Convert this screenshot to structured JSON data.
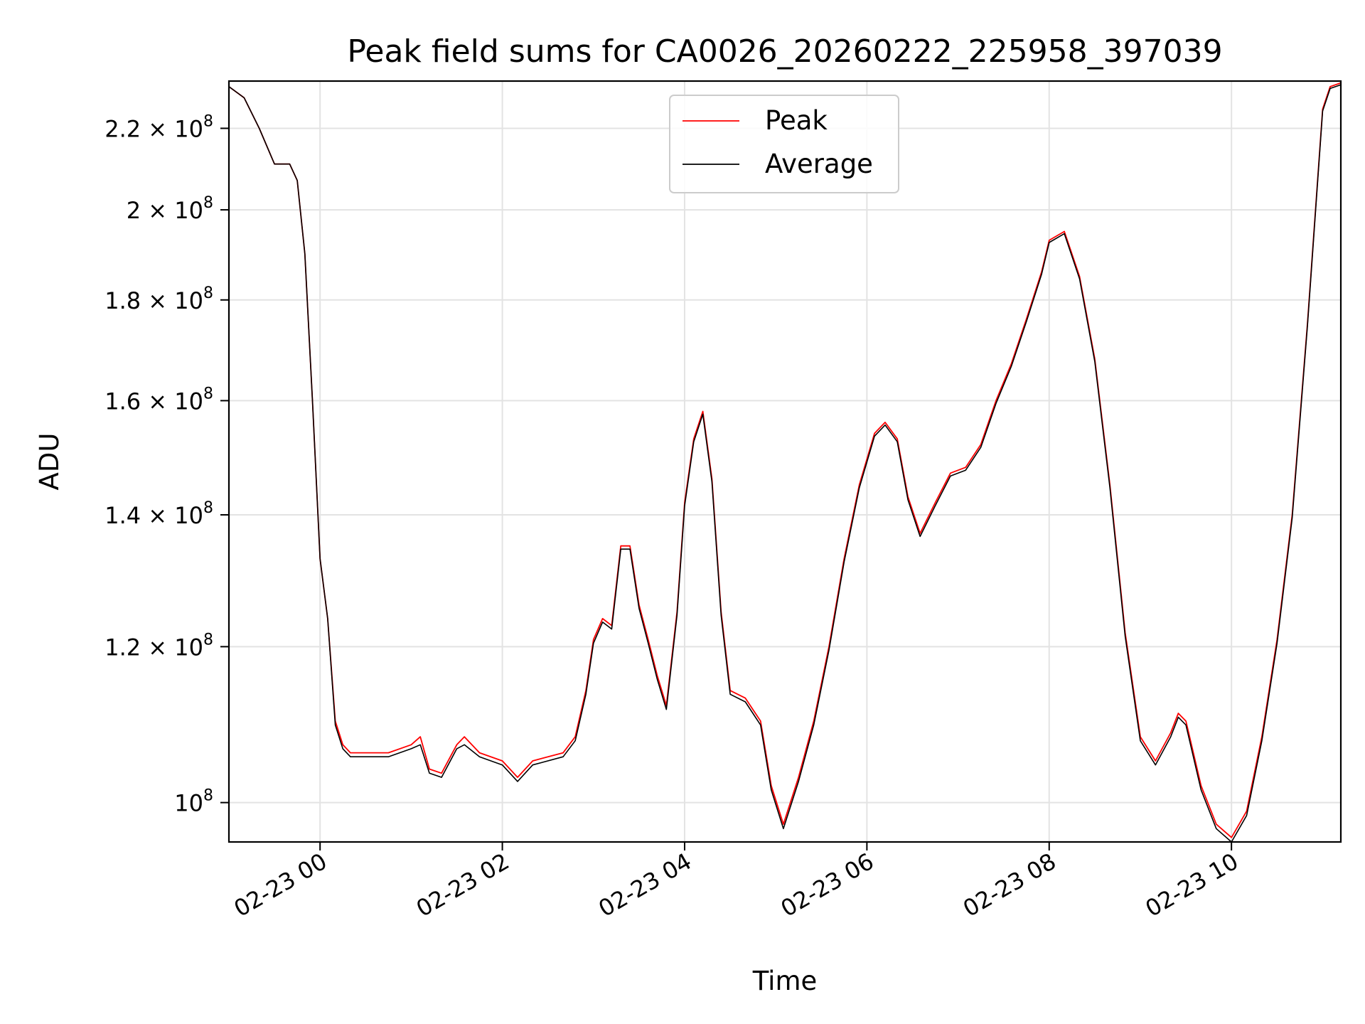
{
  "chart_data": {
    "type": "line",
    "title": "Peak field sums for CA0026_20260222_225958_397039",
    "xlabel": "Time",
    "ylabel": "ADU",
    "yscale": "log",
    "grid": true,
    "legend_position": "top-center",
    "xlim": [
      "2026-02-22 23:00",
      "2026-02-23 11:12"
    ],
    "ylim": [
      95500000,
      232500000
    ],
    "x_ticks": [
      {
        "x": "2026-02-23 00:00",
        "label": "02-23 00"
      },
      {
        "x": "2026-02-23 02:00",
        "label": "02-23 02"
      },
      {
        "x": "2026-02-23 04:00",
        "label": "02-23 04"
      },
      {
        "x": "2026-02-23 06:00",
        "label": "02-23 06"
      },
      {
        "x": "2026-02-23 08:00",
        "label": "02-23 08"
      },
      {
        "x": "2026-02-23 10:00",
        "label": "02-23 10"
      }
    ],
    "y_ticks": [
      {
        "y": 100000000,
        "mantissa": "",
        "exponent": "8"
      },
      {
        "y": 120000000,
        "mantissa": "1.2",
        "exponent": "8"
      },
      {
        "y": 140000000,
        "mantissa": "1.4",
        "exponent": "8"
      },
      {
        "y": 160000000,
        "mantissa": "1.6",
        "exponent": "8"
      },
      {
        "y": 180000000,
        "mantissa": "1.8",
        "exponent": "8"
      },
      {
        "y": 200000000,
        "mantissa": "2",
        "exponent": "8"
      },
      {
        "y": 220000000,
        "mantissa": "2.2",
        "exponent": "8"
      }
    ],
    "series": [
      {
        "name": "Peak",
        "color": "#ff0000",
        "x": [
          "2026-02-22 23:00",
          "2026-02-22 23:10",
          "2026-02-22 23:20",
          "2026-02-22 23:30",
          "2026-02-22 23:40",
          "2026-02-22 23:45",
          "2026-02-22 23:50",
          "2026-02-22 23:55",
          "2026-02-23 00:00",
          "2026-02-23 00:05",
          "2026-02-23 00:10",
          "2026-02-23 00:15",
          "2026-02-23 00:20",
          "2026-02-23 00:30",
          "2026-02-23 00:45",
          "2026-02-23 01:00",
          "2026-02-23 01:06",
          "2026-02-23 01:12",
          "2026-02-23 01:20",
          "2026-02-23 01:30",
          "2026-02-23 01:35",
          "2026-02-23 01:45",
          "2026-02-23 02:00",
          "2026-02-23 02:10",
          "2026-02-23 02:20",
          "2026-02-23 02:40",
          "2026-02-23 02:48",
          "2026-02-23 02:55",
          "2026-02-23 03:00",
          "2026-02-23 03:06",
          "2026-02-23 03:12",
          "2026-02-23 03:18",
          "2026-02-23 03:24",
          "2026-02-23 03:30",
          "2026-02-23 03:36",
          "2026-02-23 03:42",
          "2026-02-23 03:48",
          "2026-02-23 03:55",
          "2026-02-23 04:00",
          "2026-02-23 04:06",
          "2026-02-23 04:12",
          "2026-02-23 04:18",
          "2026-02-23 04:24",
          "2026-02-23 04:30",
          "2026-02-23 04:40",
          "2026-02-23 04:50",
          "2026-02-23 04:57",
          "2026-02-23 05:05",
          "2026-02-23 05:15",
          "2026-02-23 05:25",
          "2026-02-23 05:35",
          "2026-02-23 05:45",
          "2026-02-23 05:55",
          "2026-02-23 06:05",
          "2026-02-23 06:12",
          "2026-02-23 06:20",
          "2026-02-23 06:27",
          "2026-02-23 06:35",
          "2026-02-23 06:45",
          "2026-02-23 06:55",
          "2026-02-23 07:05",
          "2026-02-23 07:15",
          "2026-02-23 07:25",
          "2026-02-23 07:35",
          "2026-02-23 07:45",
          "2026-02-23 07:55",
          "2026-02-23 08:00",
          "2026-02-23 08:10",
          "2026-02-23 08:20",
          "2026-02-23 08:30",
          "2026-02-23 08:40",
          "2026-02-23 08:50",
          "2026-02-23 09:00",
          "2026-02-23 09:10",
          "2026-02-23 09:20",
          "2026-02-23 09:25",
          "2026-02-23 09:30",
          "2026-02-23 09:40",
          "2026-02-23 09:50",
          "2026-02-23 10:00",
          "2026-02-23 10:10",
          "2026-02-23 10:20",
          "2026-02-23 10:30",
          "2026-02-23 10:40",
          "2026-02-23 10:50",
          "2026-02-23 11:00",
          "2026-02-23 11:05",
          "2026-02-23 11:12"
        ],
        "y": [
          231000000,
          228000000,
          220000000,
          211000000,
          211000000,
          207000000,
          190000000,
          160000000,
          133000000,
          124000000,
          110000000,
          107000000,
          106000000,
          106000000,
          106000000,
          107000000,
          108000000,
          104000000,
          103500000,
          107000000,
          108000000,
          106000000,
          105000000,
          103000000,
          105000000,
          106000000,
          108000000,
          114000000,
          121000000,
          124000000,
          123000000,
          135000000,
          135000000,
          126000000,
          121000000,
          116000000,
          112000000,
          125000000,
          142000000,
          153000000,
          158000000,
          146000000,
          125000000,
          114000000,
          113000000,
          110000000,
          102000000,
          97500000,
          103000000,
          110000000,
          120000000,
          133000000,
          145000000,
          154000000,
          156000000,
          153000000,
          143000000,
          137000000,
          142000000,
          147000000,
          148000000,
          152000000,
          160000000,
          167000000,
          176000000,
          186000000,
          193000000,
          195000000,
          185000000,
          168000000,
          145000000,
          122000000,
          108000000,
          105000000,
          108500000,
          111000000,
          110000000,
          102000000,
          97500000,
          96000000,
          99000000,
          108000000,
          121000000,
          140000000,
          175000000,
          225000000,
          231000000,
          232000000
        ]
      },
      {
        "name": "Average",
        "color": "#000000",
        "x": [
          "2026-02-22 23:00",
          "2026-02-22 23:10",
          "2026-02-22 23:20",
          "2026-02-22 23:30",
          "2026-02-22 23:40",
          "2026-02-22 23:45",
          "2026-02-22 23:50",
          "2026-02-22 23:55",
          "2026-02-23 00:00",
          "2026-02-23 00:05",
          "2026-02-23 00:10",
          "2026-02-23 00:15",
          "2026-02-23 00:20",
          "2026-02-23 00:30",
          "2026-02-23 00:45",
          "2026-02-23 01:00",
          "2026-02-23 01:06",
          "2026-02-23 01:12",
          "2026-02-23 01:20",
          "2026-02-23 01:30",
          "2026-02-23 01:35",
          "2026-02-23 01:45",
          "2026-02-23 02:00",
          "2026-02-23 02:10",
          "2026-02-23 02:20",
          "2026-02-23 02:40",
          "2026-02-23 02:48",
          "2026-02-23 02:55",
          "2026-02-23 03:00",
          "2026-02-23 03:06",
          "2026-02-23 03:12",
          "2026-02-23 03:18",
          "2026-02-23 03:24",
          "2026-02-23 03:30",
          "2026-02-23 03:36",
          "2026-02-23 03:42",
          "2026-02-23 03:48",
          "2026-02-23 03:55",
          "2026-02-23 04:00",
          "2026-02-23 04:06",
          "2026-02-23 04:12",
          "2026-02-23 04:18",
          "2026-02-23 04:24",
          "2026-02-23 04:30",
          "2026-02-23 04:40",
          "2026-02-23 04:50",
          "2026-02-23 04:57",
          "2026-02-23 05:05",
          "2026-02-23 05:15",
          "2026-02-23 05:25",
          "2026-02-23 05:35",
          "2026-02-23 05:45",
          "2026-02-23 05:55",
          "2026-02-23 06:05",
          "2026-02-23 06:12",
          "2026-02-23 06:20",
          "2026-02-23 06:27",
          "2026-02-23 06:35",
          "2026-02-23 06:45",
          "2026-02-23 06:55",
          "2026-02-23 07:05",
          "2026-02-23 07:15",
          "2026-02-23 07:25",
          "2026-02-23 07:35",
          "2026-02-23 07:45",
          "2026-02-23 07:55",
          "2026-02-23 08:00",
          "2026-02-23 08:10",
          "2026-02-23 08:20",
          "2026-02-23 08:30",
          "2026-02-23 08:40",
          "2026-02-23 08:50",
          "2026-02-23 09:00",
          "2026-02-23 09:10",
          "2026-02-23 09:20",
          "2026-02-23 09:25",
          "2026-02-23 09:30",
          "2026-02-23 09:40",
          "2026-02-23 09:50",
          "2026-02-23 10:00",
          "2026-02-23 10:10",
          "2026-02-23 10:20",
          "2026-02-23 10:30",
          "2026-02-23 10:40",
          "2026-02-23 10:50",
          "2026-02-23 11:00",
          "2026-02-23 11:05",
          "2026-02-23 11:12"
        ],
        "y": [
          231000000,
          228000000,
          220000000,
          211000000,
          211000000,
          207000000,
          190000000,
          160000000,
          133000000,
          124000000,
          109500000,
          106500000,
          105500000,
          105500000,
          105500000,
          106500000,
          107000000,
          103500000,
          103000000,
          106500000,
          107000000,
          105500000,
          104500000,
          102500000,
          104500000,
          105500000,
          107500000,
          113500000,
          120500000,
          123500000,
          122500000,
          134500000,
          134500000,
          125500000,
          120500000,
          115500000,
          111500000,
          124500000,
          141500000,
          152500000,
          157500000,
          145500000,
          124500000,
          113500000,
          112500000,
          109500000,
          101500000,
          97000000,
          102500000,
          109500000,
          119500000,
          132500000,
          144500000,
          153500000,
          155500000,
          152500000,
          142500000,
          136500000,
          141500000,
          146500000,
          147500000,
          151500000,
          159500000,
          166500000,
          175500000,
          185500000,
          192500000,
          194500000,
          184500000,
          167500000,
          144500000,
          121500000,
          107500000,
          104500000,
          108000000,
          110500000,
          109500000,
          101500000,
          97000000,
          95500000,
          98500000,
          107500000,
          120500000,
          139500000,
          174500000,
          224500000,
          230500000,
          231500000
        ]
      }
    ]
  }
}
